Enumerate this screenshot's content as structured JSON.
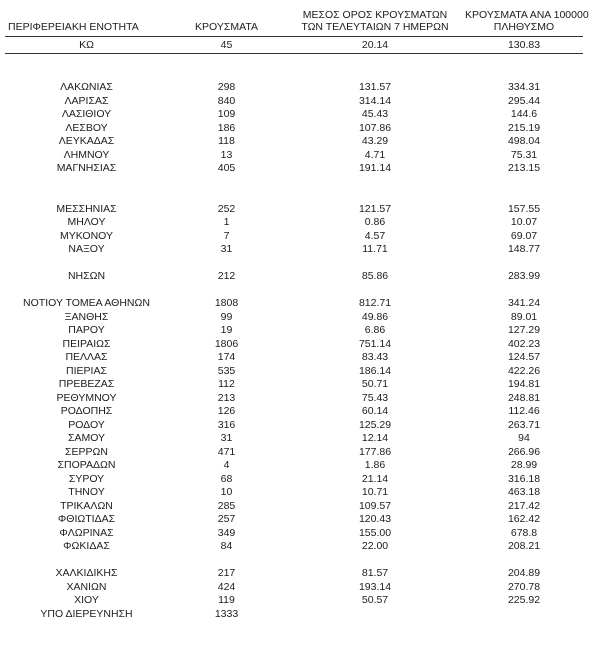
{
  "table": {
    "headers": {
      "region": "ΠΕΡΙΦΕΡΕΙΑΚΗ ΕΝΟΤΗΤΑ",
      "cases": "ΚΡΟΥΣΜΑΤΑ",
      "avg7_line1": "ΜΕΣΟΣ ΟΡΟΣ ΚΡΟΥΣΜΑΤΩΝ",
      "avg7_line2": "ΤΩΝ ΤΕΛΕΥΤΑΙΩΝ 7 ΗΜΕΡΩΝ",
      "per100k_line1": "ΚΡΟΥΣΜΑΤΑ ΑΝΑ 100000",
      "per100k_line2": "ΠΛΗΘΥΣΜΟ"
    },
    "first_row": {
      "region": "ΚΩ",
      "cases": "45",
      "avg7": "20.14",
      "per100k": "130.83"
    },
    "groups": [
      [
        {
          "region": "ΛΑΚΩΝΙΑΣ",
          "cases": "298",
          "avg7": "131.57",
          "per100k": "334.31"
        },
        {
          "region": "ΛΑΡΙΣΑΣ",
          "cases": "840",
          "avg7": "314.14",
          "per100k": "295.44"
        },
        {
          "region": "ΛΑΣΙΘΙΟΥ",
          "cases": "109",
          "avg7": "45.43",
          "per100k": "144.6"
        },
        {
          "region": "ΛΕΣΒΟΥ",
          "cases": "186",
          "avg7": "107.86",
          "per100k": "215.19"
        },
        {
          "region": "ΛΕΥΚΑΔΑΣ",
          "cases": "118",
          "avg7": "43.29",
          "per100k": "498.04"
        },
        {
          "region": "ΛΗΜΝΟΥ",
          "cases": "13",
          "avg7": "4.71",
          "per100k": "75.31"
        },
        {
          "region": "ΜΑΓΝΗΣΙΑΣ",
          "cases": "405",
          "avg7": "191.14",
          "per100k": "213.15"
        }
      ],
      [
        {
          "region": "ΜΕΣΣΗΝΙΑΣ",
          "cases": "252",
          "avg7": "121.57",
          "per100k": "157.55"
        },
        {
          "region": "ΜΗΛΟΥ",
          "cases": "1",
          "avg7": "0.86",
          "per100k": "10.07"
        },
        {
          "region": "ΜΥΚΟΝΟΥ",
          "cases": "7",
          "avg7": "4.57",
          "per100k": "69.07"
        },
        {
          "region": "ΝΑΞΟΥ",
          "cases": "31",
          "avg7": "11.71",
          "per100k": "148.77"
        }
      ],
      [
        {
          "region": "ΝΗΣΩΝ",
          "cases": "212",
          "avg7": "85.86",
          "per100k": "283.99"
        }
      ],
      [
        {
          "region": "ΝΟΤΙΟΥ ΤΟΜΕΑ ΑΘΗΝΩΝ",
          "cases": "1808",
          "avg7": "812.71",
          "per100k": "341.24"
        },
        {
          "region": "ΞΑΝΘΗΣ",
          "cases": "99",
          "avg7": "49.86",
          "per100k": "89.01"
        },
        {
          "region": "ΠΑΡΟΥ",
          "cases": "19",
          "avg7": "6.86",
          "per100k": "127.29"
        },
        {
          "region": "ΠΕΙΡΑΙΩΣ",
          "cases": "1806",
          "avg7": "751.14",
          "per100k": "402.23"
        },
        {
          "region": "ΠΕΛΛΑΣ",
          "cases": "174",
          "avg7": "83.43",
          "per100k": "124.57"
        },
        {
          "region": "ΠΙΕΡΙΑΣ",
          "cases": "535",
          "avg7": "186.14",
          "per100k": "422.26"
        },
        {
          "region": "ΠΡΕΒΕΖΑΣ",
          "cases": "112",
          "avg7": "50.71",
          "per100k": "194.81"
        },
        {
          "region": "ΡΕΘΥΜΝΟΥ",
          "cases": "213",
          "avg7": "75.43",
          "per100k": "248.81"
        },
        {
          "region": "ΡΟΔΟΠΗΣ",
          "cases": "126",
          "avg7": "60.14",
          "per100k": "112.46"
        },
        {
          "region": "ΡΟΔΟΥ",
          "cases": "316",
          "avg7": "125.29",
          "per100k": "263.71"
        },
        {
          "region": "ΣΑΜΟΥ",
          "cases": "31",
          "avg7": "12.14",
          "per100k": "94"
        },
        {
          "region": "ΣΕΡΡΩΝ",
          "cases": "471",
          "avg7": "177.86",
          "per100k": "266.96"
        },
        {
          "region": "ΣΠΟΡΑΔΩΝ",
          "cases": "4",
          "avg7": "1.86",
          "per100k": "28.99"
        },
        {
          "region": "ΣΥΡΟΥ",
          "cases": "68",
          "avg7": "21.14",
          "per100k": "316.18"
        },
        {
          "region": "ΤΗΝΟΥ",
          "cases": "10",
          "avg7": "10.71",
          "per100k": "463.18"
        },
        {
          "region": "ΤΡΙΚΑΛΩΝ",
          "cases": "285",
          "avg7": "109.57",
          "per100k": "217.42"
        },
        {
          "region": "ΦΘΙΩΤΙΔΑΣ",
          "cases": "257",
          "avg7": "120.43",
          "per100k": "162.42"
        },
        {
          "region": "ΦΛΩΡΙΝΑΣ",
          "cases": "349",
          "avg7": "155.00",
          "per100k": "678.8"
        },
        {
          "region": "ΦΩΚΙΔΑΣ",
          "cases": "84",
          "avg7": "22.00",
          "per100k": "208.21"
        }
      ],
      [
        {
          "region": "ΧΑΛΚΙΔΙΚΗΣ",
          "cases": "217",
          "avg7": "81.57",
          "per100k": "204.89"
        },
        {
          "region": "ΧΑΝΙΩΝ",
          "cases": "424",
          "avg7": "193.14",
          "per100k": "270.78"
        },
        {
          "region": "ΧΙΟΥ",
          "cases": "119",
          "avg7": "50.57",
          "per100k": "225.92"
        },
        {
          "region": "ΥΠΟ ΔΙΕΡΕΥΝΗΣΗ",
          "cases": "1333",
          "avg7": "",
          "per100k": ""
        }
      ]
    ]
  }
}
